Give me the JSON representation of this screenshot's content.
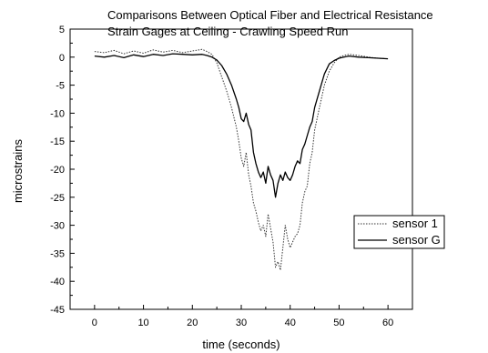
{
  "chart_data": {
    "type": "line",
    "title_lines": [
      "Comparisons Between Optical Fiber and Electrical Resistance",
      "Strain Gages at Ceiling - Crawling Speed Run"
    ],
    "xlabel": "time (seconds)",
    "ylabel": "microstrains",
    "xlim": [
      -5,
      65
    ],
    "ylim": [
      -45,
      5
    ],
    "xticks": [
      0,
      10,
      20,
      30,
      40,
      50,
      60
    ],
    "yticks": [
      5,
      0,
      -5,
      -10,
      -15,
      -20,
      -25,
      -30,
      -35,
      -40,
      -45
    ],
    "grid": false,
    "legend_position": "center-right",
    "series": [
      {
        "name": "sensor 1",
        "style": "dotted",
        "color": "#333333",
        "x": [
          0,
          2,
          4,
          6,
          8,
          10,
          12,
          14,
          16,
          18,
          20,
          22,
          23,
          24,
          25,
          26,
          27,
          28,
          29,
          29.5,
          30,
          30.5,
          31,
          31.5,
          32,
          32.5,
          33,
          33.5,
          34,
          34.5,
          35,
          35.5,
          36,
          36.5,
          37,
          37.5,
          38,
          38.5,
          39,
          39.5,
          40,
          40.5,
          41,
          41.5,
          42,
          42.5,
          43,
          43.5,
          44,
          44.5,
          45,
          46,
          47,
          48,
          49,
          50,
          51,
          52,
          54,
          56,
          58,
          60
        ],
        "y": [
          1.0,
          0.8,
          1.2,
          0.6,
          1.1,
          0.7,
          1.3,
          0.9,
          1.2,
          0.8,
          1.1,
          1.4,
          1.0,
          0.5,
          -1.0,
          -3.5,
          -6.0,
          -9.0,
          -12.5,
          -15.0,
          -18.0,
          -19.5,
          -17.0,
          -21.0,
          -23.0,
          -26.0,
          -27.5,
          -29.5,
          -31.0,
          -30.0,
          -32.0,
          -28.0,
          -30.5,
          -33.0,
          -37.5,
          -36.5,
          -38.0,
          -34.0,
          -30.0,
          -32.5,
          -34.0,
          -33.0,
          -32.0,
          -31.5,
          -30.0,
          -26.0,
          -24.0,
          -23.0,
          -19.0,
          -17.0,
          -13.0,
          -9.0,
          -5.0,
          -2.5,
          -1.0,
          0.0,
          0.3,
          0.5,
          0.3,
          0.0,
          -0.2,
          -0.3
        ]
      },
      {
        "name": "sensor G",
        "style": "solid",
        "color": "#000000",
        "x": [
          0,
          2,
          4,
          6,
          8,
          10,
          12,
          14,
          16,
          18,
          20,
          22,
          23,
          24,
          25,
          26,
          27,
          28,
          29,
          29.5,
          30,
          30.5,
          31,
          31.5,
          32,
          32.5,
          33,
          33.5,
          34,
          34.5,
          35,
          35.5,
          36,
          36.5,
          37,
          37.5,
          38,
          38.5,
          39,
          39.5,
          40,
          40.5,
          41,
          41.5,
          42,
          42.5,
          43,
          43.5,
          44,
          44.5,
          45,
          46,
          47,
          48,
          49,
          50,
          51,
          52,
          54,
          56,
          58,
          60
        ],
        "y": [
          0.2,
          0.0,
          0.3,
          -0.1,
          0.4,
          0.1,
          0.5,
          0.3,
          0.6,
          0.5,
          0.4,
          0.5,
          0.3,
          0.0,
          -0.5,
          -1.5,
          -3.0,
          -5.0,
          -7.5,
          -9.0,
          -11.0,
          -11.5,
          -10.0,
          -12.0,
          -13.0,
          -17.0,
          -19.0,
          -20.5,
          -21.5,
          -20.5,
          -22.5,
          -19.5,
          -21.0,
          -22.0,
          -25.0,
          -22.5,
          -21.0,
          -22.0,
          -20.5,
          -21.5,
          -22.0,
          -21.0,
          -19.5,
          -18.5,
          -19.0,
          -16.5,
          -15.5,
          -14.0,
          -12.5,
          -11.5,
          -9.0,
          -6.0,
          -3.0,
          -1.2,
          -0.6,
          -0.2,
          0.0,
          0.2,
          0.0,
          -0.1,
          -0.2,
          -0.3
        ]
      }
    ]
  }
}
